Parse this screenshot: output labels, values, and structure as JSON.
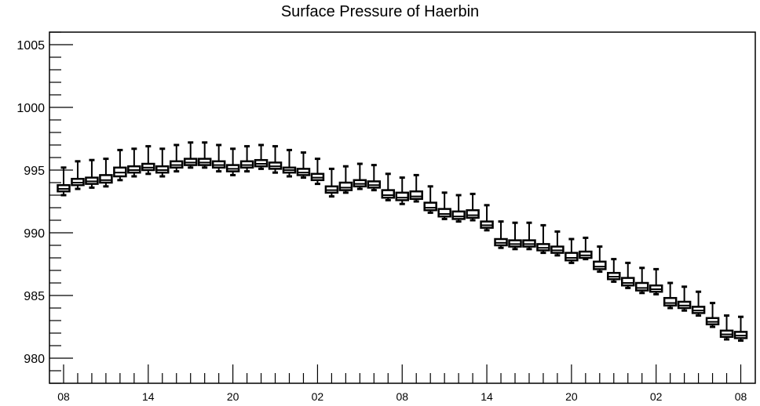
{
  "chart_data": {
    "type": "box",
    "title": "Surface Pressure of Haerbin",
    "xlabel": "",
    "ylabel": "",
    "ylim": [
      978,
      1006
    ],
    "y_ticks": [
      980,
      985,
      990,
      995,
      1000,
      1005
    ],
    "x_tick_labels": [
      "08",
      "14",
      "20",
      "02",
      "08",
      "14",
      "20",
      "02",
      "08"
    ],
    "x_tick_positions": [
      0,
      6,
      12,
      18,
      24,
      30,
      36,
      42,
      48
    ],
    "grid": false,
    "colors": {
      "box": "#000000",
      "axis": "#000000",
      "background": "#ffffff"
    },
    "boxes": [
      {
        "x": 0,
        "min": 993.0,
        "q1": 993.3,
        "median": 993.5,
        "q3": 993.8,
        "max": 995.2
      },
      {
        "x": 1,
        "min": 993.5,
        "q1": 993.8,
        "median": 994.0,
        "q3": 994.3,
        "max": 995.7
      },
      {
        "x": 2,
        "min": 993.6,
        "q1": 993.9,
        "median": 994.1,
        "q3": 994.4,
        "max": 995.8
      },
      {
        "x": 3,
        "min": 993.7,
        "q1": 994.0,
        "median": 994.2,
        "q3": 994.6,
        "max": 995.9
      },
      {
        "x": 4,
        "min": 994.2,
        "q1": 994.5,
        "median": 994.8,
        "q3": 995.2,
        "max": 996.6
      },
      {
        "x": 5,
        "min": 994.5,
        "q1": 994.8,
        "median": 995.0,
        "q3": 995.3,
        "max": 996.7
      },
      {
        "x": 6,
        "min": 994.7,
        "q1": 995.0,
        "median": 995.2,
        "q3": 995.5,
        "max": 996.9
      },
      {
        "x": 7,
        "min": 994.5,
        "q1": 994.8,
        "median": 995.0,
        "q3": 995.3,
        "max": 996.7
      },
      {
        "x": 8,
        "min": 994.9,
        "q1": 995.2,
        "median": 995.4,
        "q3": 995.7,
        "max": 997.0
      },
      {
        "x": 9,
        "min": 995.2,
        "q1": 995.4,
        "median": 995.6,
        "q3": 995.9,
        "max": 997.2
      },
      {
        "x": 10,
        "min": 995.2,
        "q1": 995.4,
        "median": 995.6,
        "q3": 995.9,
        "max": 997.2
      },
      {
        "x": 11,
        "min": 994.9,
        "q1": 995.2,
        "median": 995.4,
        "q3": 995.7,
        "max": 997.0
      },
      {
        "x": 12,
        "min": 994.6,
        "q1": 994.9,
        "median": 995.1,
        "q3": 995.4,
        "max": 996.7
      },
      {
        "x": 13,
        "min": 994.9,
        "q1": 995.2,
        "median": 995.4,
        "q3": 995.7,
        "max": 996.9
      },
      {
        "x": 14,
        "min": 995.1,
        "q1": 995.3,
        "median": 995.5,
        "q3": 995.8,
        "max": 997.0
      },
      {
        "x": 15,
        "min": 994.8,
        "q1": 995.1,
        "median": 995.3,
        "q3": 995.6,
        "max": 996.9
      },
      {
        "x": 16,
        "min": 994.5,
        "q1": 994.8,
        "median": 995.0,
        "q3": 995.2,
        "max": 996.6
      },
      {
        "x": 17,
        "min": 994.4,
        "q1": 994.6,
        "median": 994.8,
        "q3": 995.1,
        "max": 996.4
      },
      {
        "x": 18,
        "min": 993.9,
        "q1": 994.2,
        "median": 994.4,
        "q3": 994.7,
        "max": 995.9
      },
      {
        "x": 19,
        "min": 992.9,
        "q1": 993.2,
        "median": 993.4,
        "q3": 993.7,
        "max": 995.1
      },
      {
        "x": 20,
        "min": 993.2,
        "q1": 993.4,
        "median": 993.6,
        "q3": 994.0,
        "max": 995.3
      },
      {
        "x": 21,
        "min": 993.5,
        "q1": 993.7,
        "median": 993.9,
        "q3": 994.2,
        "max": 995.5
      },
      {
        "x": 22,
        "min": 993.4,
        "q1": 993.6,
        "median": 993.8,
        "q3": 994.1,
        "max": 995.4
      },
      {
        "x": 23,
        "min": 992.6,
        "q1": 992.8,
        "median": 993.0,
        "q3": 993.4,
        "max": 994.7
      },
      {
        "x": 24,
        "min": 992.3,
        "q1": 992.6,
        "median": 992.8,
        "q3": 993.2,
        "max": 994.4
      },
      {
        "x": 25,
        "min": 992.5,
        "q1": 992.7,
        "median": 992.9,
        "q3": 993.3,
        "max": 994.6
      },
      {
        "x": 26,
        "min": 991.6,
        "q1": 991.8,
        "median": 992.0,
        "q3": 992.4,
        "max": 993.7
      },
      {
        "x": 27,
        "min": 991.1,
        "q1": 991.3,
        "median": 991.5,
        "q3": 991.9,
        "max": 993.2
      },
      {
        "x": 28,
        "min": 990.9,
        "q1": 991.1,
        "median": 991.3,
        "q3": 991.7,
        "max": 993.0
      },
      {
        "x": 29,
        "min": 991.0,
        "q1": 991.2,
        "median": 991.4,
        "q3": 991.8,
        "max": 993.1
      },
      {
        "x": 30,
        "min": 990.2,
        "q1": 990.4,
        "median": 990.6,
        "q3": 990.9,
        "max": 992.2
      },
      {
        "x": 31,
        "min": 988.8,
        "q1": 989.0,
        "median": 989.2,
        "q3": 989.5,
        "max": 990.9
      },
      {
        "x": 32,
        "min": 988.7,
        "q1": 988.9,
        "median": 989.1,
        "q3": 989.4,
        "max": 990.8
      },
      {
        "x": 33,
        "min": 988.7,
        "q1": 988.9,
        "median": 989.1,
        "q3": 989.4,
        "max": 990.8
      },
      {
        "x": 34,
        "min": 988.4,
        "q1": 988.6,
        "median": 988.8,
        "q3": 989.1,
        "max": 990.6
      },
      {
        "x": 35,
        "min": 988.2,
        "q1": 988.4,
        "median": 988.6,
        "q3": 988.9,
        "max": 990.1
      },
      {
        "x": 36,
        "min": 987.6,
        "q1": 987.8,
        "median": 988.0,
        "q3": 988.4,
        "max": 989.5
      },
      {
        "x": 37,
        "min": 987.9,
        "q1": 988.0,
        "median": 988.2,
        "q3": 988.5,
        "max": 989.6
      },
      {
        "x": 38,
        "min": 986.9,
        "q1": 987.1,
        "median": 987.3,
        "q3": 987.7,
        "max": 988.9
      },
      {
        "x": 39,
        "min": 986.1,
        "q1": 986.3,
        "median": 986.5,
        "q3": 986.8,
        "max": 987.9
      },
      {
        "x": 40,
        "min": 985.6,
        "q1": 985.8,
        "median": 986.0,
        "q3": 986.4,
        "max": 987.6
      },
      {
        "x": 41,
        "min": 985.2,
        "q1": 985.4,
        "median": 985.6,
        "q3": 986.0,
        "max": 987.2
      },
      {
        "x": 42,
        "min": 985.1,
        "q1": 985.3,
        "median": 985.5,
        "q3": 985.8,
        "max": 987.1
      },
      {
        "x": 43,
        "min": 984.0,
        "q1": 984.2,
        "median": 984.4,
        "q3": 984.8,
        "max": 986.0
      },
      {
        "x": 44,
        "min": 983.8,
        "q1": 984.0,
        "median": 984.2,
        "q3": 984.5,
        "max": 985.7
      },
      {
        "x": 45,
        "min": 983.4,
        "q1": 983.6,
        "median": 983.8,
        "q3": 984.1,
        "max": 985.3
      },
      {
        "x": 46,
        "min": 982.5,
        "q1": 982.7,
        "median": 982.9,
        "q3": 983.2,
        "max": 984.4
      },
      {
        "x": 47,
        "min": 981.5,
        "q1": 981.7,
        "median": 981.9,
        "q3": 982.2,
        "max": 983.4
      },
      {
        "x": 48,
        "min": 981.4,
        "q1": 981.6,
        "median": 981.8,
        "q3": 982.1,
        "max": 983.3
      }
    ]
  }
}
